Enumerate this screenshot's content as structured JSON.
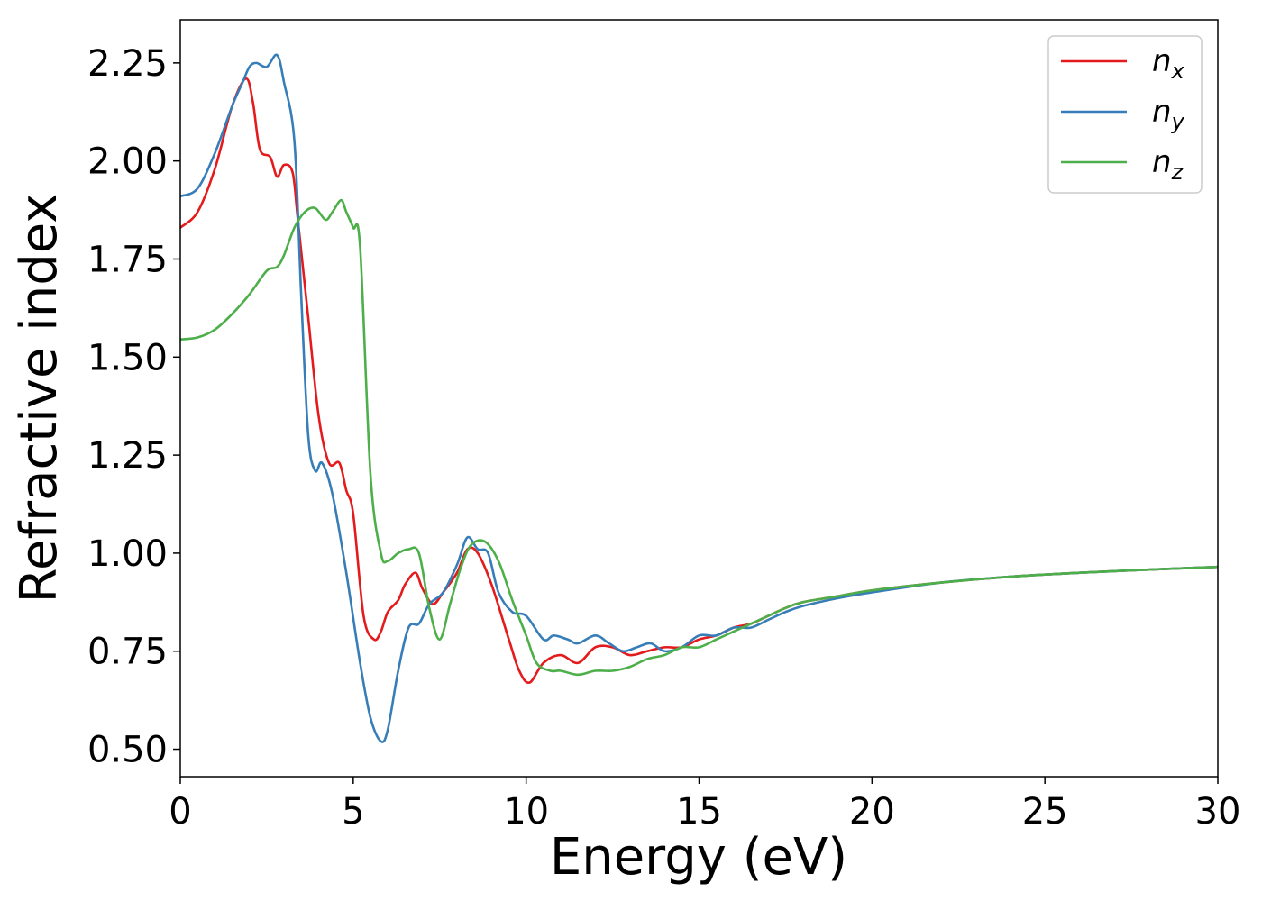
{
  "chart_data": {
    "type": "line",
    "xlabel": "Energy (eV)",
    "ylabel": "Refractive index",
    "xlim": [
      0,
      30
    ],
    "ylim": [
      0.43,
      2.36
    ],
    "xticks": [
      0,
      5,
      10,
      15,
      20,
      25,
      30
    ],
    "xtick_labels": [
      "0",
      "5",
      "10",
      "15",
      "20",
      "25",
      "30"
    ],
    "yticks": [
      0.5,
      0.75,
      1.0,
      1.25,
      1.5,
      1.75,
      2.0,
      2.25
    ],
    "ytick_labels": [
      "0.50",
      "0.75",
      "1.00",
      "1.25",
      "1.50",
      "1.75",
      "2.00",
      "2.25"
    ],
    "grid": false,
    "legend_position": "top-right",
    "series": [
      {
        "name": "n_x",
        "base": "n",
        "sub": "x",
        "color": "#e41a1c",
        "x": [
          0,
          0.5,
          1,
          1.5,
          1.9,
          2.1,
          2.3,
          2.6,
          2.8,
          3.0,
          3.25,
          3.4,
          3.7,
          4.0,
          4.3,
          4.6,
          4.8,
          5.0,
          5.3,
          5.6,
          5.8,
          6.0,
          6.3,
          6.5,
          6.8,
          7.0,
          7.3,
          7.6,
          8.0,
          8.3,
          8.6,
          9.0,
          9.5,
          9.8,
          10.1,
          10.5,
          11.0,
          11.5,
          12.0,
          12.5,
          13.0,
          13.5,
          14.0,
          14.5,
          15.0,
          15.5,
          16.0,
          16.5,
          17.0,
          17.5,
          18.0,
          19.0,
          20.0,
          22.0,
          24.0,
          26.0,
          28.0,
          30.0
        ],
        "y": [
          1.83,
          1.87,
          1.98,
          2.14,
          2.21,
          2.15,
          2.03,
          2.01,
          1.96,
          1.99,
          1.97,
          1.85,
          1.6,
          1.35,
          1.23,
          1.23,
          1.16,
          1.1,
          0.84,
          0.78,
          0.8,
          0.85,
          0.88,
          0.92,
          0.95,
          0.91,
          0.87,
          0.9,
          0.95,
          1.01,
          1.0,
          0.92,
          0.78,
          0.7,
          0.67,
          0.72,
          0.74,
          0.72,
          0.76,
          0.76,
          0.74,
          0.75,
          0.76,
          0.76,
          0.78,
          0.79,
          0.81,
          0.82,
          0.84,
          0.86,
          0.875,
          0.89,
          0.905,
          0.925,
          0.94,
          0.95,
          0.958,
          0.965
        ]
      },
      {
        "name": "n_y",
        "base": "n",
        "sub": "y",
        "color": "#377eb8",
        "x": [
          0,
          0.5,
          1,
          1.5,
          1.8,
          2.0,
          2.2,
          2.5,
          2.8,
          3.0,
          3.3,
          3.5,
          3.7,
          3.9,
          4.1,
          4.4,
          4.8,
          5.2,
          5.5,
          5.8,
          6.0,
          6.3,
          6.6,
          6.9,
          7.2,
          7.6,
          8.0,
          8.3,
          8.6,
          8.9,
          9.2,
          9.6,
          10.0,
          10.5,
          10.8,
          11.2,
          11.5,
          12.0,
          12.4,
          12.8,
          13.2,
          13.6,
          14.0,
          14.5,
          15.0,
          15.5,
          16.0,
          16.5,
          17.0,
          17.5,
          18.0,
          19.0,
          20.0,
          22.0,
          24.0,
          26.0,
          28.0,
          30.0
        ],
        "y": [
          1.91,
          1.93,
          2.02,
          2.14,
          2.2,
          2.24,
          2.25,
          2.24,
          2.27,
          2.2,
          2.05,
          1.65,
          1.3,
          1.21,
          1.23,
          1.15,
          0.95,
          0.72,
          0.58,
          0.52,
          0.55,
          0.7,
          0.81,
          0.82,
          0.87,
          0.9,
          0.97,
          1.04,
          1.01,
          1.0,
          0.9,
          0.85,
          0.84,
          0.78,
          0.79,
          0.78,
          0.77,
          0.79,
          0.77,
          0.75,
          0.76,
          0.77,
          0.75,
          0.76,
          0.79,
          0.79,
          0.81,
          0.81,
          0.83,
          0.85,
          0.865,
          0.885,
          0.9,
          0.925,
          0.94,
          0.95,
          0.958,
          0.965
        ]
      },
      {
        "name": "n_z",
        "base": "n",
        "sub": "z",
        "color": "#4daf4a",
        "x": [
          0,
          0.5,
          1,
          1.5,
          2.0,
          2.5,
          2.8,
          3.0,
          3.3,
          3.6,
          3.9,
          4.2,
          4.4,
          4.65,
          4.8,
          5.0,
          5.2,
          5.5,
          5.8,
          6.0,
          6.3,
          6.6,
          6.9,
          7.2,
          7.5,
          7.8,
          8.1,
          8.4,
          8.8,
          9.2,
          9.6,
          10.0,
          10.3,
          10.7,
          11.0,
          11.5,
          12.0,
          12.5,
          13.0,
          13.5,
          14.0,
          14.5,
          15.0,
          15.5,
          16.0,
          16.5,
          17.0,
          17.5,
          18.0,
          19.0,
          20.0,
          22.0,
          24.0,
          26.0,
          28.0,
          30.0
        ],
        "y": [
          1.545,
          1.55,
          1.57,
          1.61,
          1.66,
          1.72,
          1.73,
          1.76,
          1.83,
          1.87,
          1.88,
          1.85,
          1.87,
          1.9,
          1.87,
          1.83,
          1.78,
          1.2,
          1.0,
          0.98,
          1.0,
          1.01,
          1.0,
          0.86,
          0.78,
          0.87,
          0.96,
          1.02,
          1.03,
          0.98,
          0.88,
          0.79,
          0.72,
          0.7,
          0.7,
          0.69,
          0.7,
          0.7,
          0.71,
          0.73,
          0.74,
          0.76,
          0.76,
          0.78,
          0.8,
          0.82,
          0.84,
          0.86,
          0.875,
          0.89,
          0.905,
          0.925,
          0.94,
          0.95,
          0.958,
          0.965
        ]
      }
    ]
  }
}
